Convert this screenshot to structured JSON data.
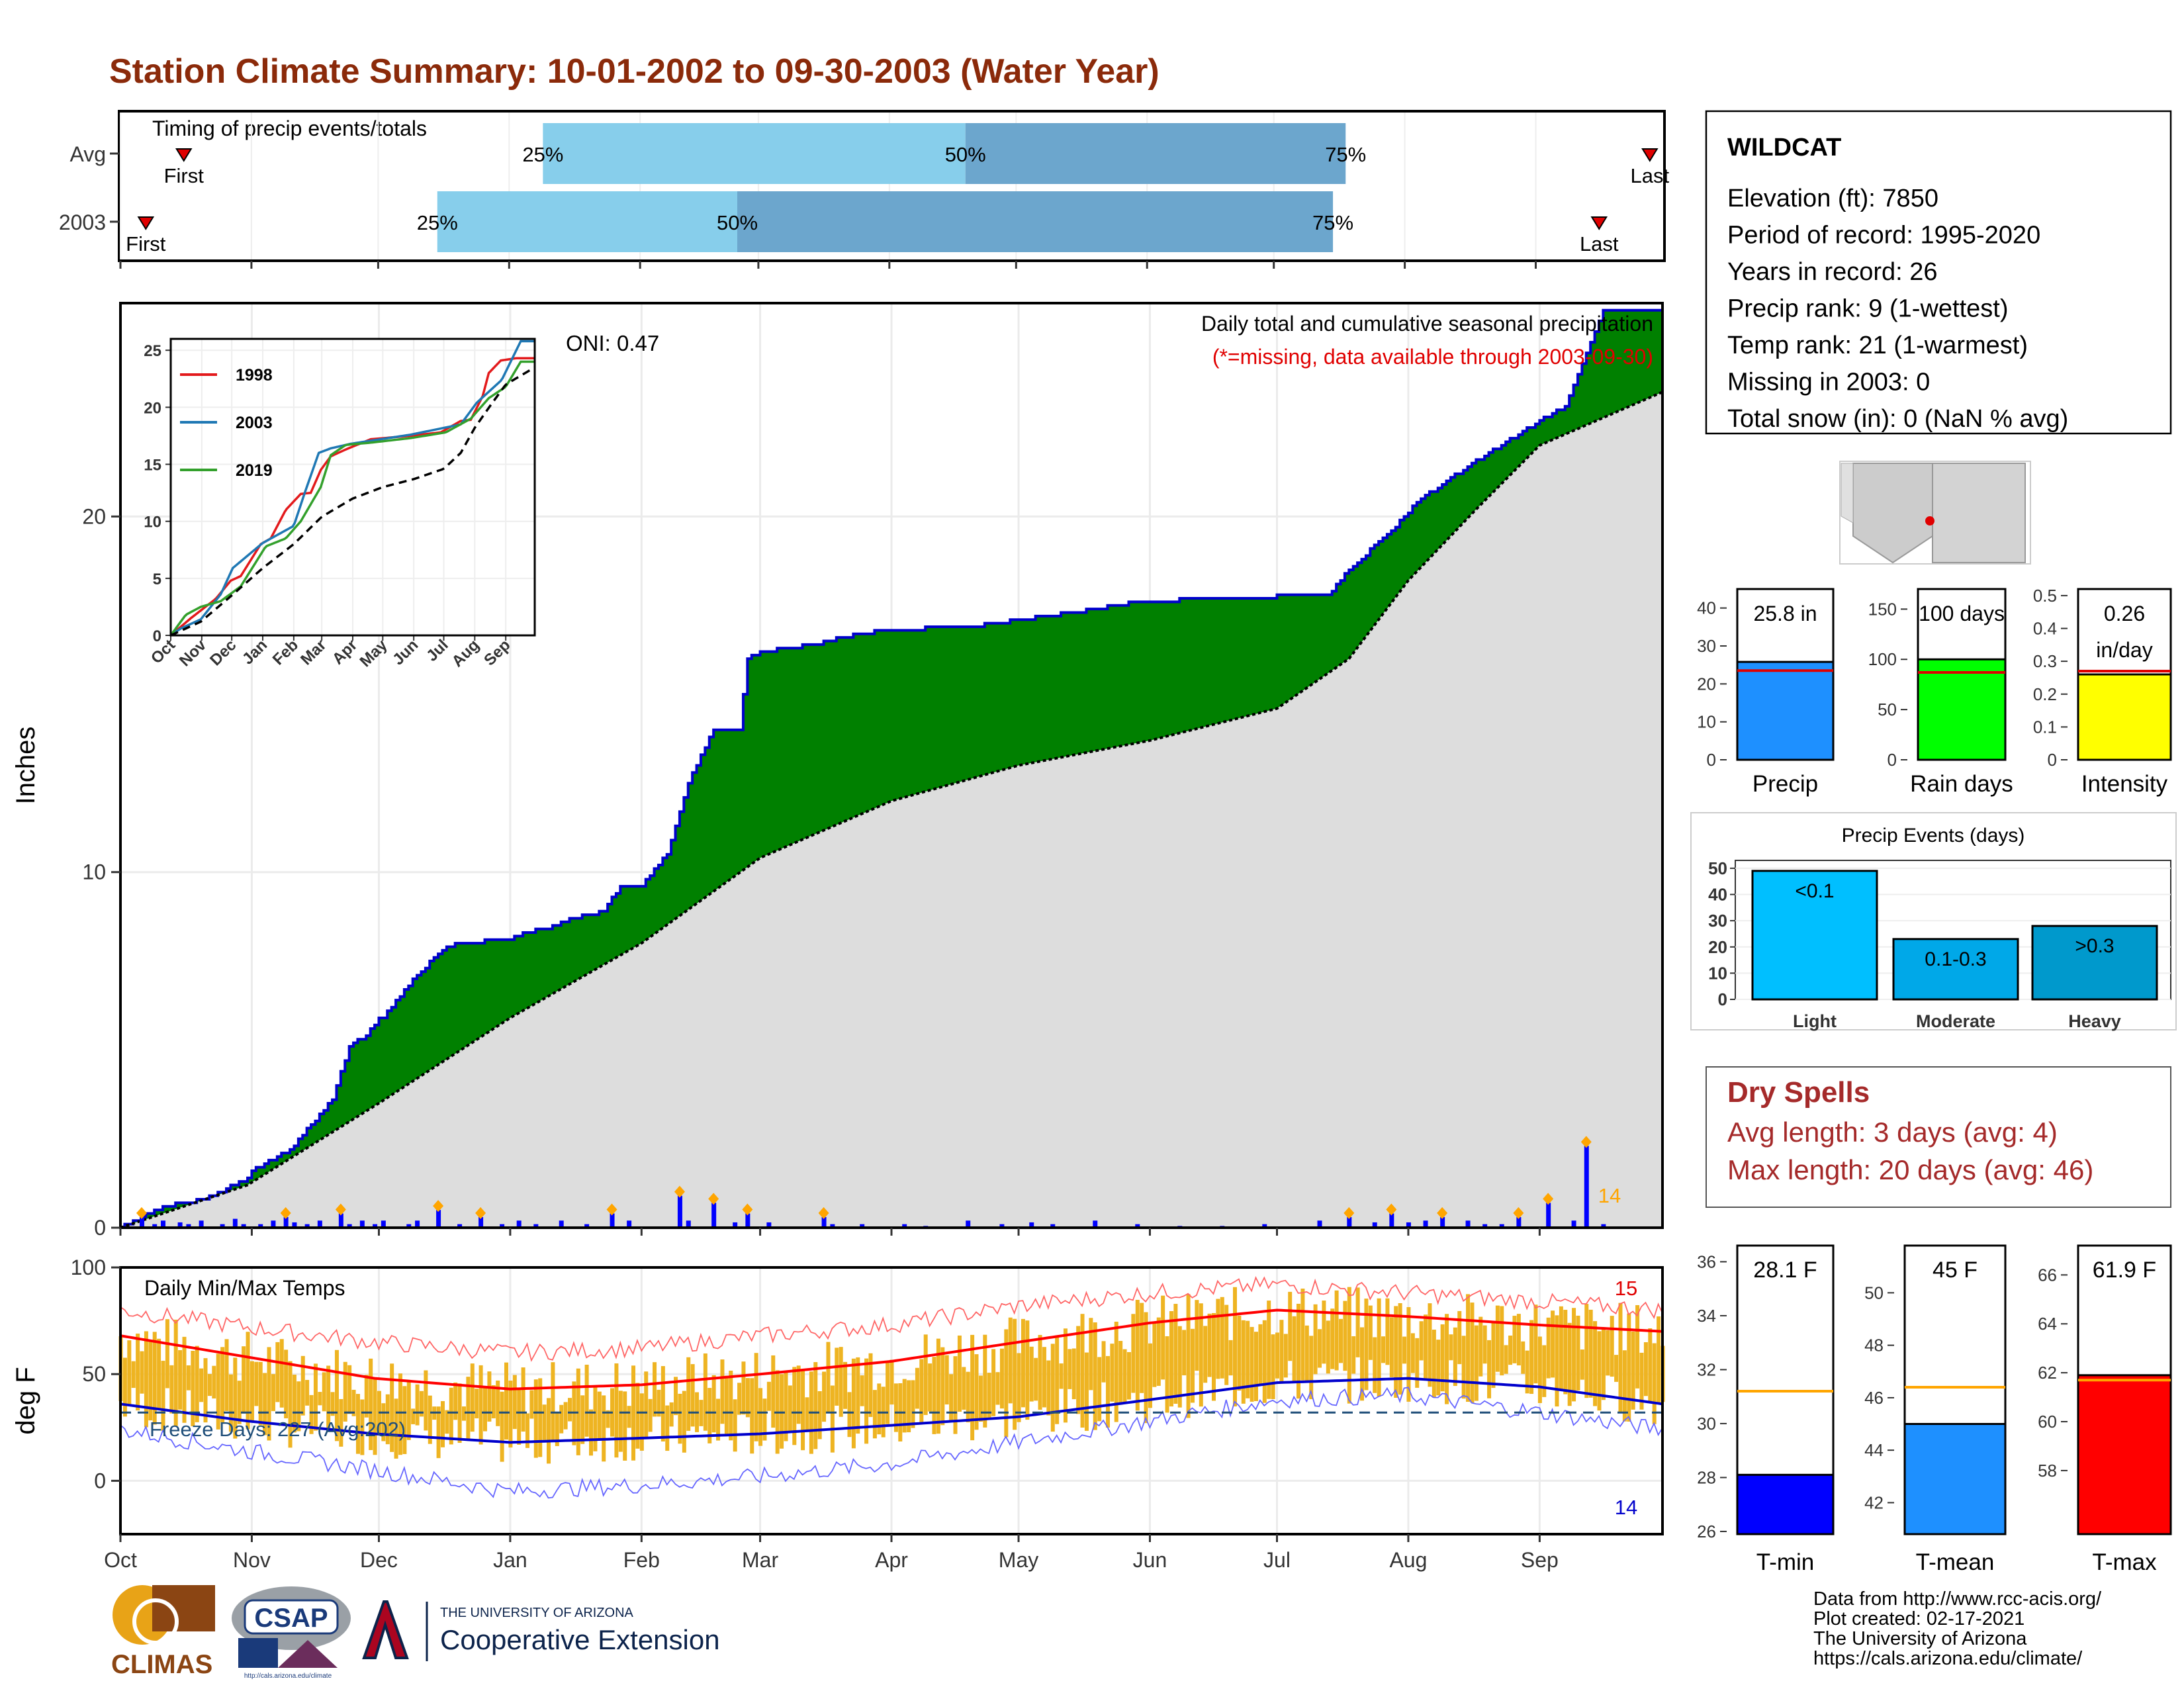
{
  "page": {
    "title": "Station Climate Summary: 10-01-2002 to 09-30-2003 (Water Year)",
    "title_color": "#8B2A0A"
  },
  "timing": {
    "heading": "Timing of precip events/totals",
    "rows": [
      {
        "label": "Avg",
        "first_label": "First",
        "last_label": "Last",
        "first_day": 15,
        "p25_day": 100,
        "p50_day": 200,
        "p75_day": 290,
        "last_day": 362,
        "p25_label": "25%",
        "p50_label": "50%",
        "p75_label": "75%"
      },
      {
        "label": "2003",
        "first_day": 6,
        "p25_day": 75,
        "p50_day": 146,
        "p75_day": 287,
        "last_day": 350,
        "first_label": "First",
        "last_label": "Last",
        "p25_label": "25%",
        "p50_label": "50%",
        "p75_label": "75%"
      }
    ],
    "colors": {
      "early": "#87CEEB",
      "mid": "#6CA6CD",
      "marker": "#E00000"
    }
  },
  "station": {
    "name": "WILDCAT",
    "lines": [
      "Elevation (ft): 7850",
      "Period of record: 1995-2020",
      "Years in record: 26",
      "Precip rank: 9 (1-wettest)",
      "Temp rank: 21 (1-warmest)",
      "Missing in 2003: 0",
      "Total snow (in): 0 (NaN % avg)"
    ]
  },
  "dry_spells": {
    "title": "Dry Spells",
    "avg_line": "Avg length: 3 days (avg: 4)",
    "max_line": "Max length: 20 days (avg: 46)",
    "color": "#A52A2A"
  },
  "footer": {
    "lines": [
      "Data from http://www.rcc-acis.org/",
      "Plot created: 02-17-2021",
      "The University of Arizona",
      "https://cals.arizona.edu/climate/"
    ],
    "logos": {
      "climas": "CLIMAS",
      "csap": "CSAP",
      "csap_url": "http://cals.arizona.edu/climate",
      "ua_small": "THE UNIVERSITY OF ARIZONA",
      "ua_big": "Cooperative Extension"
    }
  },
  "chart_data": [
    {
      "id": "cumulative-precip",
      "type": "area",
      "ylabel": "Inches",
      "ylim": [
        0,
        26
      ],
      "yticks": [
        0,
        10,
        20
      ],
      "months": [
        "Oct",
        "Nov",
        "Dec",
        "Jan",
        "Feb",
        "Mar",
        "Apr",
        "May",
        "Jun",
        "Jul",
        "Aug",
        "Sep"
      ],
      "month_start_days": [
        0,
        31,
        61,
        92,
        123,
        151,
        182,
        212,
        243,
        273,
        304,
        335
      ],
      "annotation_title": "Daily total and cumulative seasonal precipitation",
      "annotation_missing": "(*=missing, data available through 2003-09-30)",
      "oni": "ONI: 0.47",
      "count_label": "14",
      "cumulative_2003": {
        "x": [
          0,
          10,
          20,
          30,
          31,
          40,
          45,
          50,
          54,
          58,
          61,
          62,
          70,
          76,
          80,
          92,
          96,
          100,
          107,
          114,
          118,
          123,
          129,
          134,
          140,
          146,
          148,
          151,
          158,
          164,
          170,
          180,
          200,
          225,
          240,
          260,
          285,
          290,
          300,
          306,
          318,
          331,
          341,
          350,
          364
        ],
        "y": [
          0,
          0.6,
          0.8,
          1.4,
          1.6,
          2.2,
          2.9,
          3.6,
          5.1,
          5.4,
          5.9,
          5.9,
          7.1,
          7.8,
          8.0,
          8.1,
          8.3,
          8.4,
          8.7,
          8.9,
          9.6,
          9.6,
          10.5,
          12.5,
          14.0,
          14.0,
          16.0,
          16.2,
          16.3,
          16.4,
          16.6,
          16.8,
          16.9,
          17.3,
          17.6,
          17.7,
          17.8,
          18.5,
          19.6,
          20.4,
          21.4,
          22.4,
          23.1,
          25.8,
          25.8
        ]
      },
      "average_cumulative": {
        "x": [
          0,
          30,
          61,
          92,
          123,
          151,
          182,
          212,
          243,
          273,
          290,
          304,
          320,
          335,
          364
        ],
        "y": [
          0,
          1.2,
          3.5,
          5.9,
          8.0,
          10.4,
          12.0,
          13.0,
          13.7,
          14.6,
          16.0,
          18.2,
          20.2,
          22.0,
          23.5
        ]
      },
      "daily_events": {
        "days": [
          5,
          8,
          10,
          14,
          16,
          19,
          24,
          27,
          29,
          33,
          36,
          39,
          41,
          44,
          47,
          52,
          54,
          57,
          60,
          62,
          68,
          70,
          75,
          80,
          85,
          90,
          94,
          98,
          104,
          110,
          116,
          120,
          132,
          134,
          140,
          145,
          148,
          153,
          166,
          168,
          175,
          185,
          190,
          200,
          208,
          215,
          220,
          230,
          240,
          250,
          260,
          270,
          283,
          290,
          296,
          300,
          304,
          308,
          312,
          318,
          322,
          326,
          330,
          337,
          343,
          346,
          350
        ],
        "values": [
          0.3,
          0.1,
          0.2,
          0.15,
          0.1,
          0.2,
          0.1,
          0.25,
          0.1,
          0.1,
          0.2,
          0.3,
          0.15,
          0.1,
          0.2,
          0.4,
          0.1,
          0.2,
          0.1,
          0.2,
          0.1,
          0.2,
          0.5,
          0.1,
          0.3,
          0.1,
          0.2,
          0.1,
          0.2,
          0.1,
          0.4,
          0.2,
          0.9,
          0.2,
          0.7,
          0.15,
          0.4,
          0.15,
          0.3,
          0.1,
          0.1,
          0.1,
          0.05,
          0.2,
          0.1,
          0.15,
          0.1,
          0.2,
          0.1,
          0.05,
          0.05,
          0.1,
          0.2,
          0.3,
          0.15,
          0.4,
          0.15,
          0.2,
          0.3,
          0.2,
          0.1,
          0.1,
          0.3,
          0.7,
          0.2,
          2.3,
          0.1
        ]
      },
      "colors": {
        "cumulative_fill": "#008000",
        "cumulative_line": "#0000CC",
        "average_fill": "#DDDDDD",
        "average_line": "#000000",
        "daily_bar": "#0000FF",
        "daily_marker": "#FFA500"
      }
    },
    {
      "id": "analog-years-inset",
      "type": "line",
      "xticks": [
        "Oct",
        "Nov",
        "Dec",
        "Jan",
        "Feb",
        "Mar",
        "Apr",
        "May",
        "Jun",
        "Jul",
        "Aug",
        "Sep"
      ],
      "yticks": [
        0,
        5,
        10,
        15,
        20,
        25
      ],
      "ylim": [
        0,
        26
      ],
      "series": [
        {
          "name": "1998",
          "color": "#E31A1C",
          "x": [
            0,
            20,
            45,
            60,
            70,
            90,
            100,
            115,
            130,
            140,
            150,
            160,
            175,
            200,
            240,
            270,
            290,
            300,
            312,
            318,
            330,
            345,
            364
          ],
          "y": [
            0,
            1.5,
            3.2,
            4.8,
            5.2,
            8.0,
            8.5,
            11.0,
            12.4,
            12.5,
            14.5,
            15.7,
            16.3,
            17.2,
            17.5,
            17.8,
            18.8,
            18.9,
            21.0,
            23.0,
            24.1,
            24.3,
            24.3
          ]
        },
        {
          "name": "2003",
          "color": "#1F78B4",
          "x": [
            0,
            10,
            30,
            50,
            62,
            92,
            123,
            134,
            148,
            160,
            180,
            240,
            290,
            306,
            331,
            350,
            364
          ],
          "y": [
            0,
            0.6,
            1.4,
            3.6,
            5.9,
            8.1,
            9.6,
            12.5,
            16.0,
            16.4,
            16.8,
            17.6,
            18.5,
            20.4,
            22.4,
            25.8,
            25.8
          ]
        },
        {
          "name": "2019",
          "color": "#33A02C",
          "x": [
            0,
            15,
            30,
            50,
            70,
            95,
            115,
            130,
            150,
            160,
            175,
            200,
            240,
            275,
            300,
            318,
            335,
            350,
            364
          ],
          "y": [
            0,
            1.8,
            2.5,
            3.0,
            4.3,
            7.8,
            8.5,
            10.0,
            13.0,
            15.8,
            16.7,
            16.9,
            17.3,
            17.8,
            19.0,
            20.8,
            21.8,
            24.0,
            24.0
          ]
        },
        {
          "name": "",
          "color": "#000000",
          "dashed": true,
          "x": [
            0,
            30,
            61,
            92,
            123,
            151,
            182,
            212,
            243,
            273,
            290,
            304,
            320,
            335,
            364
          ],
          "y": [
            0,
            1.2,
            3.5,
            5.9,
            8.0,
            10.4,
            12.0,
            13.0,
            13.7,
            14.6,
            16.0,
            18.2,
            20.2,
            22.0,
            23.5
          ]
        }
      ]
    },
    {
      "id": "daily-temps",
      "type": "line",
      "ylabel": "deg F",
      "ylim": [
        -25,
        100
      ],
      "yticks": [
        0,
        50,
        100
      ],
      "heading": "Daily Min/Max Temps",
      "freeze_label": "Freeze Days: 227 (Avg:202)",
      "freeze_line": 32,
      "count_high": "15",
      "count_low": "14",
      "months": [
        "Oct",
        "Nov",
        "Dec",
        "Jan",
        "Feb",
        "Mar",
        "Apr",
        "May",
        "Jun",
        "Jul",
        "Aug",
        "Sep"
      ],
      "month_start_days": [
        0,
        31,
        61,
        92,
        123,
        151,
        182,
        212,
        243,
        273,
        304,
        335
      ],
      "avg_max": {
        "x": [
          0,
          30,
          60,
          92,
          123,
          151,
          182,
          212,
          243,
          273,
          304,
          335,
          364
        ],
        "y": [
          68,
          58,
          48,
          43,
          45,
          50,
          56,
          65,
          74,
          80,
          77,
          73,
          70
        ]
      },
      "avg_min": {
        "x": [
          0,
          30,
          60,
          92,
          123,
          151,
          182,
          212,
          243,
          273,
          304,
          335,
          364
        ],
        "y": [
          36,
          28,
          22,
          18,
          20,
          22,
          26,
          30,
          38,
          46,
          48,
          44,
          36
        ]
      },
      "record_max": {
        "x": [
          0,
          30,
          60,
          92,
          123,
          151,
          182,
          212,
          243,
          273,
          304,
          335,
          364
        ],
        "y": [
          80,
          72,
          65,
          60,
          62,
          68,
          73,
          82,
          88,
          92,
          88,
          84,
          80
        ]
      },
      "record_min": {
        "x": [
          0,
          30,
          60,
          92,
          123,
          151,
          182,
          212,
          243,
          273,
          304,
          335,
          364
        ],
        "y": [
          24,
          14,
          5,
          -5,
          -2,
          2,
          8,
          18,
          28,
          38,
          40,
          32,
          24
        ]
      },
      "colors": {
        "band": "#EEB422",
        "avg_max": "#FF0000",
        "avg_min": "#0000CC",
        "record_max": "#FF6666",
        "record_min": "#6666FF",
        "freeze": "#1F4E79"
      }
    },
    {
      "id": "precip-summary-bars",
      "type": "bar",
      "panels": [
        {
          "category": "Precip",
          "value": 25.8,
          "label": "25.8 in",
          "avg": 23.5,
          "ylim": [
            0,
            45
          ],
          "yticks": [
            0,
            10,
            20,
            30,
            40
          ],
          "color": "#1E90FF"
        },
        {
          "category": "Rain days",
          "value": 100,
          "label": "100 days",
          "avg": 87,
          "ylim": [
            0,
            170
          ],
          "yticks": [
            0,
            50,
            100,
            150
          ],
          "color": "#00FF00"
        },
        {
          "category": "Intensity",
          "value": 0.26,
          "label_lines": [
            "0.26",
            "in/day"
          ],
          "avg": 0.27,
          "ylim": [
            0,
            0.52
          ],
          "yticks": [
            0.0,
            0.1,
            0.2,
            0.3,
            0.4,
            0.5
          ],
          "color": "#FFFF00"
        }
      ]
    },
    {
      "id": "precip-events",
      "type": "bar",
      "title": "Precip Events (days)",
      "categories": [
        "Light",
        "Moderate",
        "Heavy"
      ],
      "bar_labels": [
        "<0.1",
        "0.1-0.3",
        ">0.3"
      ],
      "values": [
        49,
        23,
        28
      ],
      "ylim": [
        0,
        53
      ],
      "yticks": [
        0,
        10,
        20,
        30,
        40,
        50
      ],
      "colors": [
        "#00BFFF",
        "#00A8E8",
        "#0099CC"
      ]
    },
    {
      "id": "temp-summary-bars",
      "type": "bar",
      "panels": [
        {
          "category": "T-min",
          "value": 28.1,
          "label": "28.1 F",
          "avg": 31.2,
          "ylim": [
            25.9,
            36.6
          ],
          "yticks": [
            26,
            28,
            30,
            32,
            34,
            36
          ],
          "color": "#0000FF"
        },
        {
          "category": "T-mean",
          "value": 45,
          "label": "45 F",
          "avg": 46.4,
          "ylim": [
            40.8,
            51.8
          ],
          "yticks": [
            42,
            44,
            46,
            48,
            50
          ],
          "color": "#1E90FF"
        },
        {
          "category": "T-max",
          "value": 61.9,
          "label": "61.9 F",
          "avg": 61.7,
          "ylim": [
            55.4,
            67.2
          ],
          "yticks": [
            58,
            60,
            62,
            64,
            66
          ],
          "color": "#FF0000"
        }
      ]
    }
  ]
}
